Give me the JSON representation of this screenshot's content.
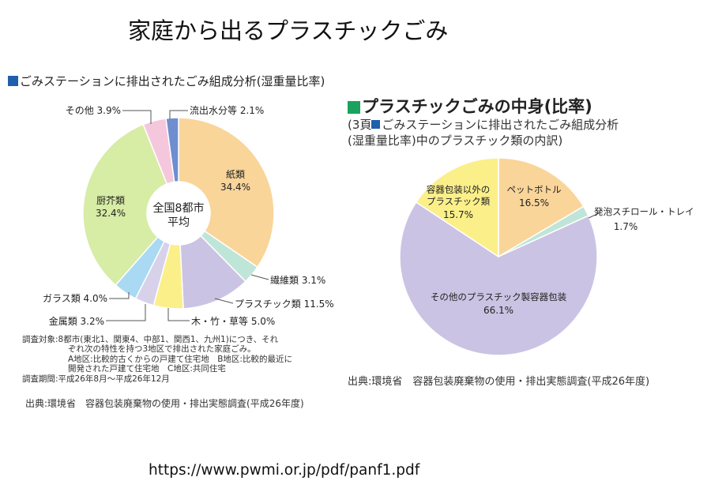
{
  "page": {
    "title": "家庭から出るプラスチックごみ",
    "url": "https://www.pwmi.or.jp/pdf/panf1.pdf"
  },
  "left": {
    "heading": "ごみステーションに排出されたごみ組成分析(湿重量比率)",
    "center_label": [
      "全国8都市",
      "平均"
    ],
    "notes": [
      "調査対象:8都市(東北1、関東4、中部1、関西1、九州1)につき、それ",
      "ぞれ次の特性を持つ3地区で排出された家庭ごみ。",
      "A地区:比較的古くからの戸建て住宅地　B地区:比較的最近に",
      "開発された戸建て住宅地　C地区:共同住宅",
      "調査期間:平成26年8月〜平成26年12月"
    ],
    "source": "出典:環境省　容器包装廃棄物の使用・排出実態調査(平成26年度)"
  },
  "right": {
    "heading": "プラスチックごみの中身(比率)",
    "sub_line1_a": "(3頁",
    "sub_line1_b": "ごみステーションに排出されたごみ組成分析",
    "sub_line2": "(湿重量比率)中のプラスチック類の内訳)",
    "source": "出典:環境省　容器包装廃棄物の使用・排出実態調査(平成26年度)"
  },
  "colors": {
    "paper": "#f9d59a",
    "fiber": "#bfe5d8",
    "plastic": "#cbc3e3",
    "wood": "#fbef8a",
    "metal": "#d7d2ea",
    "glass": "#a9d9f3",
    "kitchen": "#d7eca5",
    "other": "#f5c7dd",
    "water": "#6f8ed0",
    "pet": "#f9d59a",
    "styrofoam": "#bfe5d8",
    "other_containers": "#cbc3e3",
    "non_container": "#fbef8a"
  },
  "chart_data": [
    {
      "type": "pie",
      "title": "ごみステーションに排出されたごみ組成分析(湿重量比率)",
      "center_text": "全国8都市 平均",
      "slices": [
        {
          "label": "紙類",
          "value": 34.4,
          "text": "34.4%"
        },
        {
          "label": "繊維類",
          "value": 3.1,
          "text": "3.1%"
        },
        {
          "label": "プラスチック類",
          "value": 11.5,
          "text": "11.5%"
        },
        {
          "label": "木・竹・草等",
          "value": 5.0,
          "text": "5.0%"
        },
        {
          "label": "金属類",
          "value": 3.2,
          "text": "3.2%"
        },
        {
          "label": "ガラス類",
          "value": 4.0,
          "text": "4.0%"
        },
        {
          "label": "厨芥類",
          "value": 32.4,
          "text": "32.4%"
        },
        {
          "label": "その他",
          "value": 3.9,
          "text": "3.9%"
        },
        {
          "label": "流出水分等",
          "value": 2.1,
          "text": "2.1%"
        }
      ]
    },
    {
      "type": "pie",
      "title": "プラスチックごみの中身(比率)",
      "slices": [
        {
          "label": "ペットボトル",
          "value": 16.5,
          "text": "16.5%"
        },
        {
          "label": "発泡スチロール・トレイ",
          "value": 1.7,
          "text": "1.7%"
        },
        {
          "label": "その他のプラスチック製容器包装",
          "value": 66.1,
          "text": "66.1%"
        },
        {
          "label": "容器包装以外のプラスチック類",
          "value": 15.7,
          "text": "15.7%"
        }
      ]
    }
  ]
}
